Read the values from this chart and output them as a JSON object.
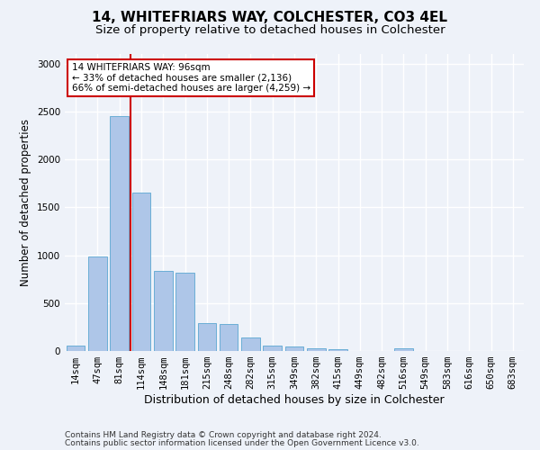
{
  "title": "14, WHITEFRIARS WAY, COLCHESTER, CO3 4EL",
  "subtitle": "Size of property relative to detached houses in Colchester",
  "xlabel": "Distribution of detached houses by size in Colchester",
  "ylabel": "Number of detached properties",
  "categories": [
    "14sqm",
    "47sqm",
    "81sqm",
    "114sqm",
    "148sqm",
    "181sqm",
    "215sqm",
    "248sqm",
    "282sqm",
    "315sqm",
    "349sqm",
    "382sqm",
    "415sqm",
    "449sqm",
    "482sqm",
    "516sqm",
    "549sqm",
    "583sqm",
    "616sqm",
    "650sqm",
    "683sqm"
  ],
  "values": [
    55,
    990,
    2450,
    1650,
    835,
    820,
    290,
    285,
    145,
    55,
    45,
    30,
    20,
    0,
    0,
    30,
    0,
    0,
    0,
    0,
    0
  ],
  "bar_color": "#aec6e8",
  "bar_edge_color": "#6aaed6",
  "annotation_text": "14 WHITEFRIARS WAY: 96sqm\n← 33% of detached houses are smaller (2,136)\n66% of semi-detached houses are larger (4,259) →",
  "annotation_box_color": "#ffffff",
  "annotation_box_edge_color": "#cc0000",
  "vline_color": "#cc0000",
  "vline_x": 2.5,
  "ylim": [
    0,
    3100
  ],
  "yticks": [
    0,
    500,
    1000,
    1500,
    2000,
    2500,
    3000
  ],
  "footnote1": "Contains HM Land Registry data © Crown copyright and database right 2024.",
  "footnote2": "Contains public sector information licensed under the Open Government Licence v3.0.",
  "title_fontsize": 11,
  "subtitle_fontsize": 9.5,
  "xlabel_fontsize": 9,
  "ylabel_fontsize": 8.5,
  "tick_fontsize": 7.5,
  "footnote_fontsize": 6.5,
  "background_color": "#eef2f9",
  "grid_color": "#ffffff"
}
